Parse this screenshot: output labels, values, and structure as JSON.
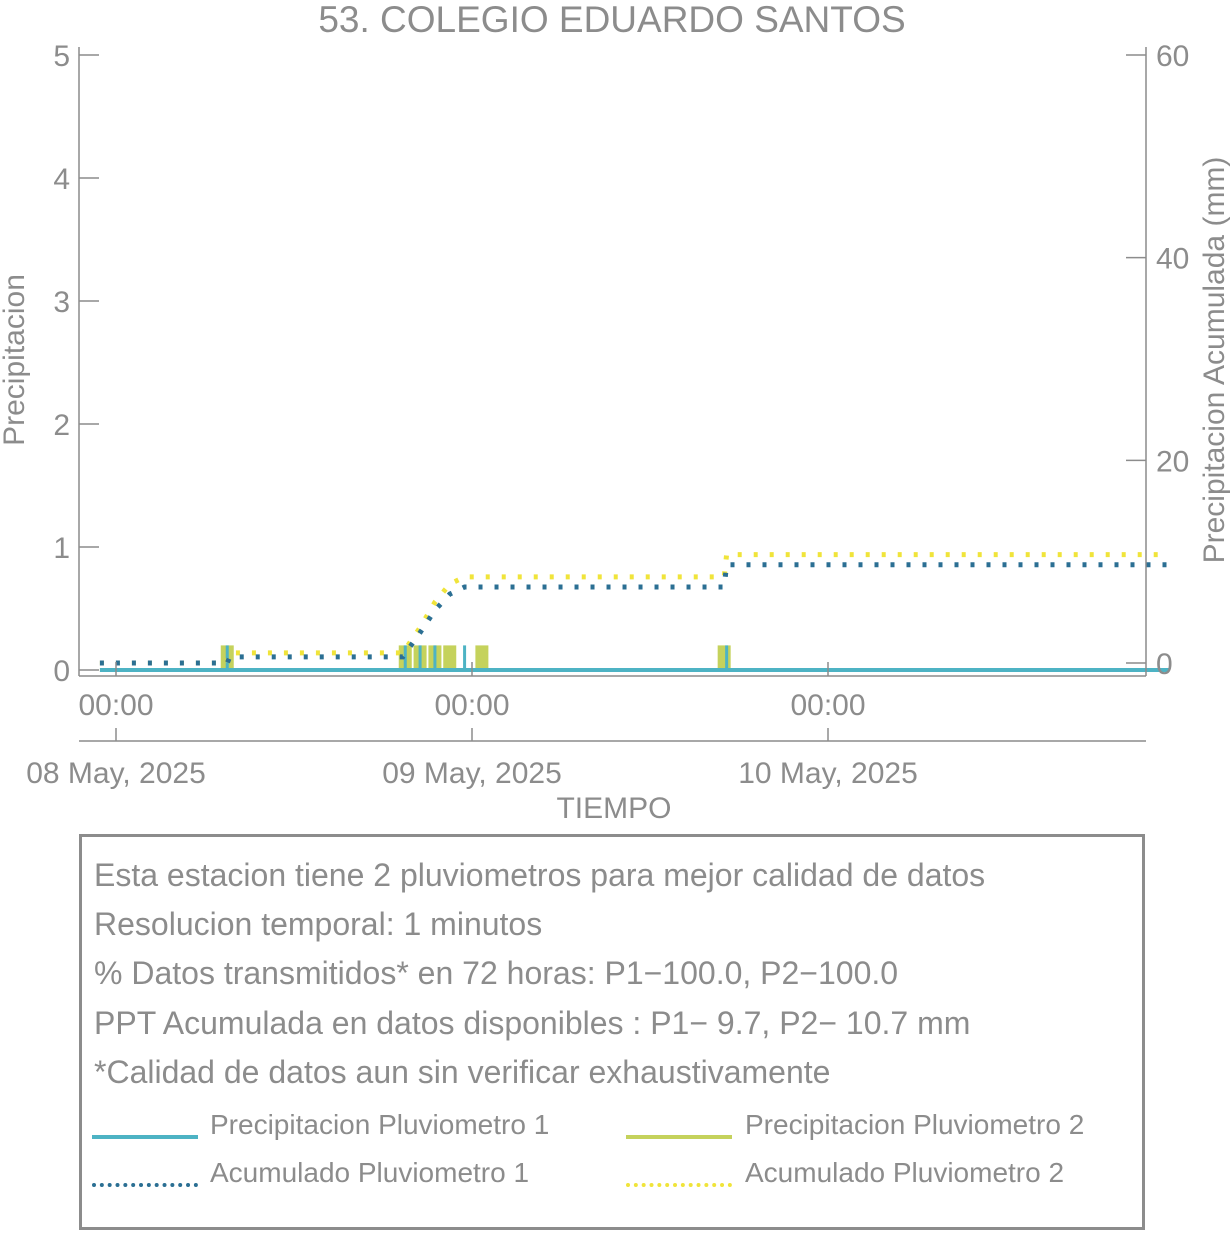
{
  "chart_data": {
    "type": "line",
    "title": "53. COLEGIO EDUARDO SANTOS",
    "xlabel": "TIEMPO",
    "ylabel": "Precipitacion",
    "ylabel_right": "Precipitacion Acumulada (mm)",
    "x_range": [
      "2025-05-07 22:55",
      "2025-05-10 23:00"
    ],
    "ylim": [
      0,
      5
    ],
    "ylim_right": [
      0,
      60
    ],
    "yticks": [
      0,
      1,
      2,
      3,
      4,
      5
    ],
    "yticks_right": [
      0,
      20,
      40,
      60
    ],
    "xticks": [
      {
        "time": "2025-05-08 00:00",
        "label": "00:00",
        "date_label": "08 May, 2025"
      },
      {
        "time": "2025-05-09 00:00",
        "label": "00:00",
        "date_label": "09 May, 2025"
      },
      {
        "time": "2025-05-10 00:00",
        "label": "00:00",
        "date_label": "10 May, 2025"
      }
    ],
    "grid": false,
    "series": [
      {
        "name": "Precipitacion Pluviometro 1",
        "axis": "left",
        "style": "solid",
        "color": "#4db3c4",
        "points": [
          [
            "2025-05-08 07:30",
            0.2
          ],
          [
            "2025-05-08 19:30",
            0.2
          ],
          [
            "2025-05-08 20:30",
            0.2
          ],
          [
            "2025-05-08 21:30",
            0.2
          ],
          [
            "2025-05-08 23:30",
            0.2
          ],
          [
            "2025-05-09 17:10",
            0.2
          ]
        ]
      },
      {
        "name": "Precipitacion Pluviometro 2",
        "axis": "left",
        "style": "solid",
        "color": "#c5d25c",
        "points": [
          [
            "2025-05-08 07:30",
            0.2
          ],
          [
            "2025-05-08 19:30",
            0.2
          ],
          [
            "2025-05-08 20:30",
            0.2
          ],
          [
            "2025-05-08 21:30",
            0.2
          ],
          [
            "2025-05-08 22:30",
            0.2
          ],
          [
            "2025-05-09 00:40",
            0.2
          ],
          [
            "2025-05-09 17:00",
            0.2
          ]
        ]
      },
      {
        "name": "Acumulado Pluviometro 1",
        "axis": "right",
        "style": "dotted",
        "color": "#2b6f93",
        "points": [
          [
            "2025-05-07 22:55",
            0.0
          ],
          [
            "2025-05-08 07:30",
            0.0
          ],
          [
            "2025-05-08 07:40",
            0.6
          ],
          [
            "2025-05-08 19:20",
            0.6
          ],
          [
            "2025-05-08 20:30",
            3.0
          ],
          [
            "2025-05-08 21:30",
            5.2
          ],
          [
            "2025-05-08 22:30",
            6.8
          ],
          [
            "2025-05-08 23:30",
            7.5
          ],
          [
            "2025-05-09 17:00",
            7.5
          ],
          [
            "2025-05-09 17:10",
            9.7
          ],
          [
            "2025-05-10 23:00",
            9.7
          ]
        ]
      },
      {
        "name": "Acumulado Pluviometro 2",
        "axis": "right",
        "style": "dotted",
        "color": "#f0e43a",
        "points": [
          [
            "2025-05-07 22:55",
            0.0
          ],
          [
            "2025-05-08 07:30",
            0.0
          ],
          [
            "2025-05-08 07:40",
            1.0
          ],
          [
            "2025-05-08 19:20",
            1.0
          ],
          [
            "2025-05-08 20:30",
            3.5
          ],
          [
            "2025-05-08 21:30",
            6.0
          ],
          [
            "2025-05-08 22:30",
            7.8
          ],
          [
            "2025-05-08 23:30",
            8.5
          ],
          [
            "2025-05-09 17:00",
            8.5
          ],
          [
            "2025-05-09 17:10",
            10.7
          ],
          [
            "2025-05-10 23:00",
            10.7
          ]
        ]
      }
    ]
  },
  "notes": [
    "Esta estacion tiene 2 pluviometros para mejor calidad de datos",
    "Resolucion temporal: 1 minutos",
    "% Datos transmitidos* en 72 horas: P1−100.0, P2−100.0",
    "PPT Acumulada en datos disponibles : P1−  9.7, P2− 10.7 mm",
    "*Calidad de datos aun sin verificar exhaustivamente"
  ],
  "legend": [
    {
      "label": "Precipitacion Pluviometro 1",
      "style": "solid",
      "color": "#4db3c4"
    },
    {
      "label": "Precipitacion Pluviometro 2",
      "style": "solid",
      "color": "#c5d25c"
    },
    {
      "label": "Acumulado Pluviometro 1",
      "style": "dotted",
      "color": "#2b6f93"
    },
    {
      "label": "Acumulado Pluviometro 2",
      "style": "dotted",
      "color": "#f0e43a"
    }
  ]
}
